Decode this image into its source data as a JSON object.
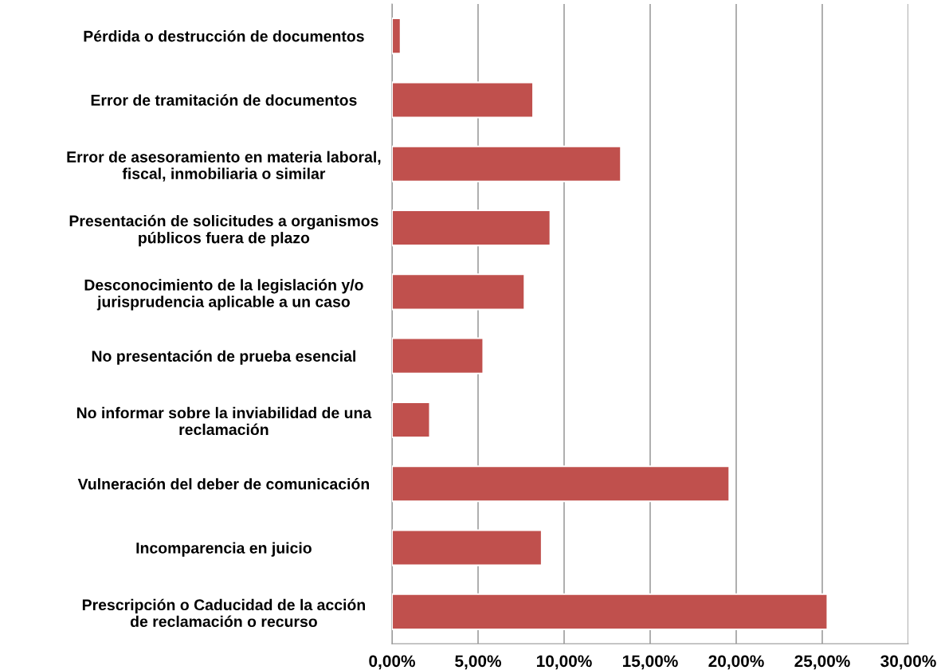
{
  "chart_data": {
    "type": "bar",
    "orientation": "horizontal",
    "categories": [
      "Pérdida o destrucción de documentos",
      "Error de tramitación de documentos",
      "Error de asesoramiento en materia laboral,\nfiscal, inmobiliaria o similar",
      "Presentación de solicitudes a organismos\npúblicos fuera de plazo",
      "Desconocimiento de la legislación y/o\njurisprudencia aplicable a un caso",
      "No presentación de prueba esencial",
      "No informar sobre la inviabilidad de una\nreclamación",
      "Vulneración del deber de comunicación",
      "Incomparencia en juicio",
      "Prescripción o Caducidad de la acción\nde reclamación o recurso"
    ],
    "values": [
      0.5,
      8.2,
      13.3,
      9.2,
      7.7,
      5.3,
      2.2,
      19.6,
      8.7,
      25.3
    ],
    "color": "#c0504d",
    "xlim": [
      0,
      30
    ],
    "xticks": [
      {
        "value": 0,
        "label": "0,00%"
      },
      {
        "value": 5,
        "label": "5,00%"
      },
      {
        "value": 10,
        "label": "10,00%"
      },
      {
        "value": 15,
        "label": "15,00%"
      },
      {
        "value": 20,
        "label": "20,00%"
      },
      {
        "value": 25,
        "label": "25,00%"
      },
      {
        "value": 30,
        "label": "30,00%"
      }
    ],
    "grid": "x"
  }
}
